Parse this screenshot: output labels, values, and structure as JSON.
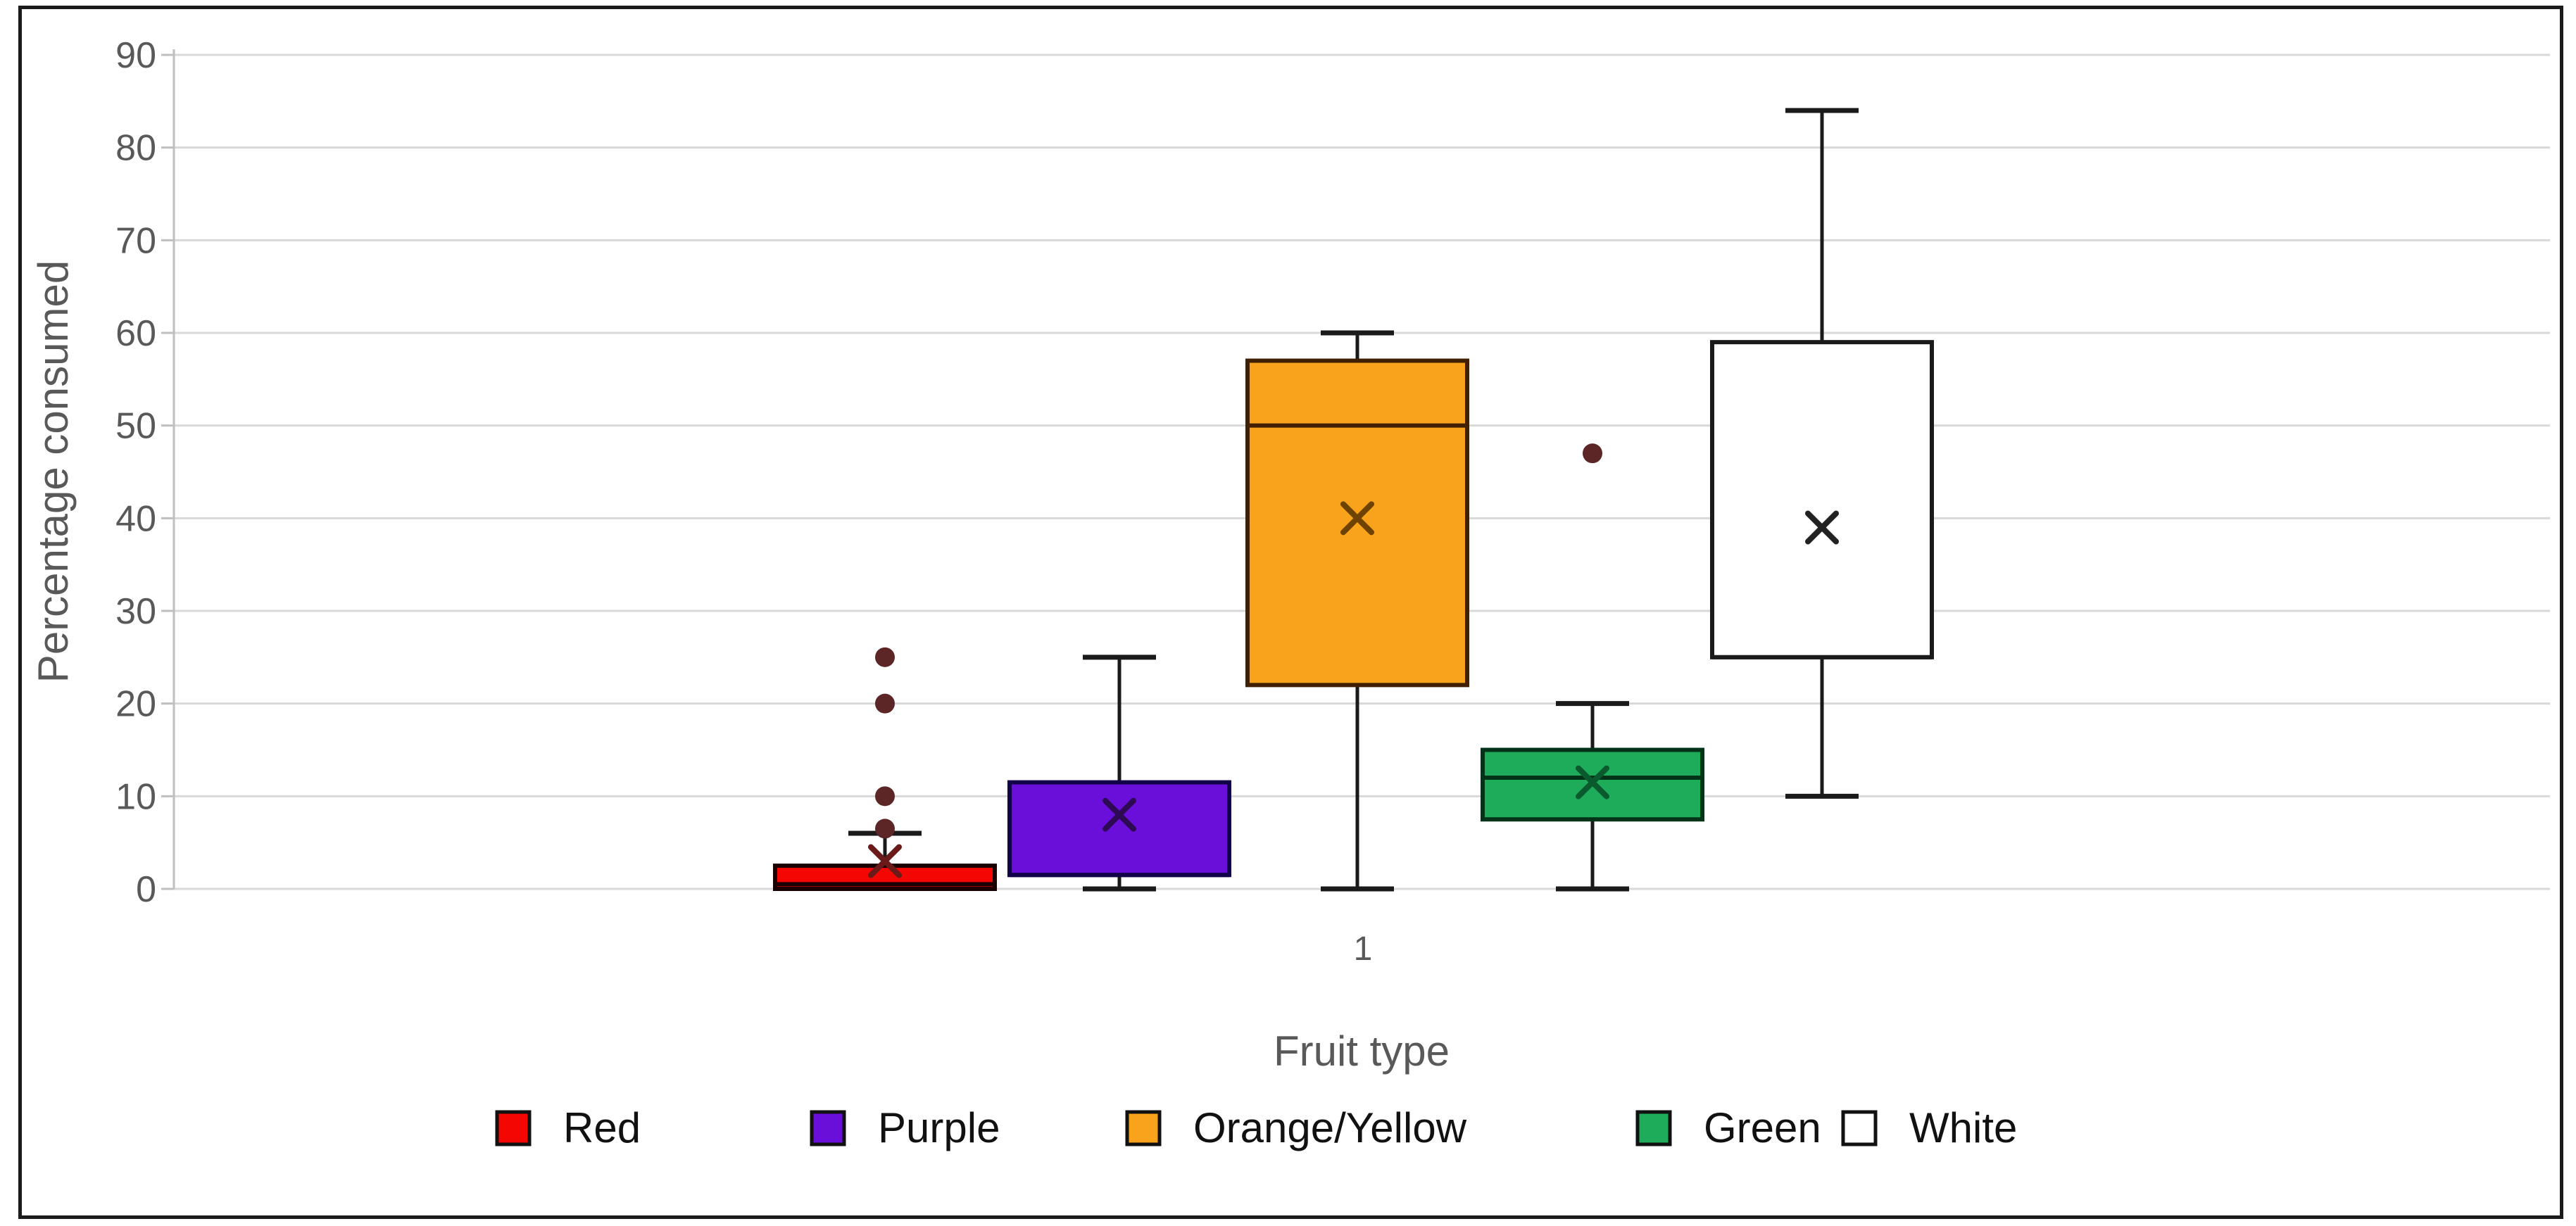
{
  "chart_data": {
    "type": "box",
    "title": "",
    "xlabel": "Fruit type",
    "ylabel": "Percentage consumed",
    "x_category_label": "1",
    "ylim": [
      0,
      90
    ],
    "ytick_interval": 10,
    "ytick_labels": [
      "0",
      "10",
      "20",
      "30",
      "40",
      "50",
      "60",
      "70",
      "80",
      "90"
    ],
    "grid": true,
    "legend_position": "bottom",
    "series": [
      {
        "name": "Red",
        "color": "#F40603",
        "border": "#1A0000",
        "mean_color": "#6B1A1A",
        "min": 0,
        "q1": 0,
        "median": 0.5,
        "q3": 2.5,
        "max": 6,
        "mean": 3,
        "outliers": [
          6.5,
          10,
          20,
          25
        ]
      },
      {
        "name": "Purple",
        "color": "#6A0FD9",
        "border": "#120049",
        "mean_color": "#2E0A54",
        "min": 0,
        "q1": 1.5,
        "median": 1.5,
        "q3": 11.5,
        "max": 25,
        "mean": 8,
        "outliers": []
      },
      {
        "name": "Orange/Yellow",
        "color": "#F9A21B",
        "border": "#402000",
        "mean_color": "#6E4200",
        "min": 0,
        "q1": 22,
        "median": 50,
        "q3": 57,
        "max": 60,
        "mean": 40,
        "outliers": []
      },
      {
        "name": "Green",
        "color": "#1EAC5B",
        "border": "#003318",
        "mean_color": "#0A5A2E",
        "min": 0,
        "q1": 7.5,
        "median": 12,
        "q3": 15,
        "max": 20,
        "mean": 11.5,
        "outliers": [
          47
        ]
      },
      {
        "name": "White",
        "color": "#FFFFFF",
        "border": "#1A1A1A",
        "mean_color": "#222222",
        "min": 10,
        "q1": 25,
        "median": 25,
        "q3": 59,
        "max": 84,
        "mean": 39,
        "outliers": []
      }
    ],
    "colors": {
      "outlier_dot": "#5C2626",
      "gridline": "#D8D8D8",
      "axis_line": "#BFBFBF",
      "tick_label": "#595959",
      "axis_title": "#595959",
      "legend_text": "#111111",
      "background": "#FFFFFF",
      "frame_border": "#1B1B1B"
    }
  }
}
